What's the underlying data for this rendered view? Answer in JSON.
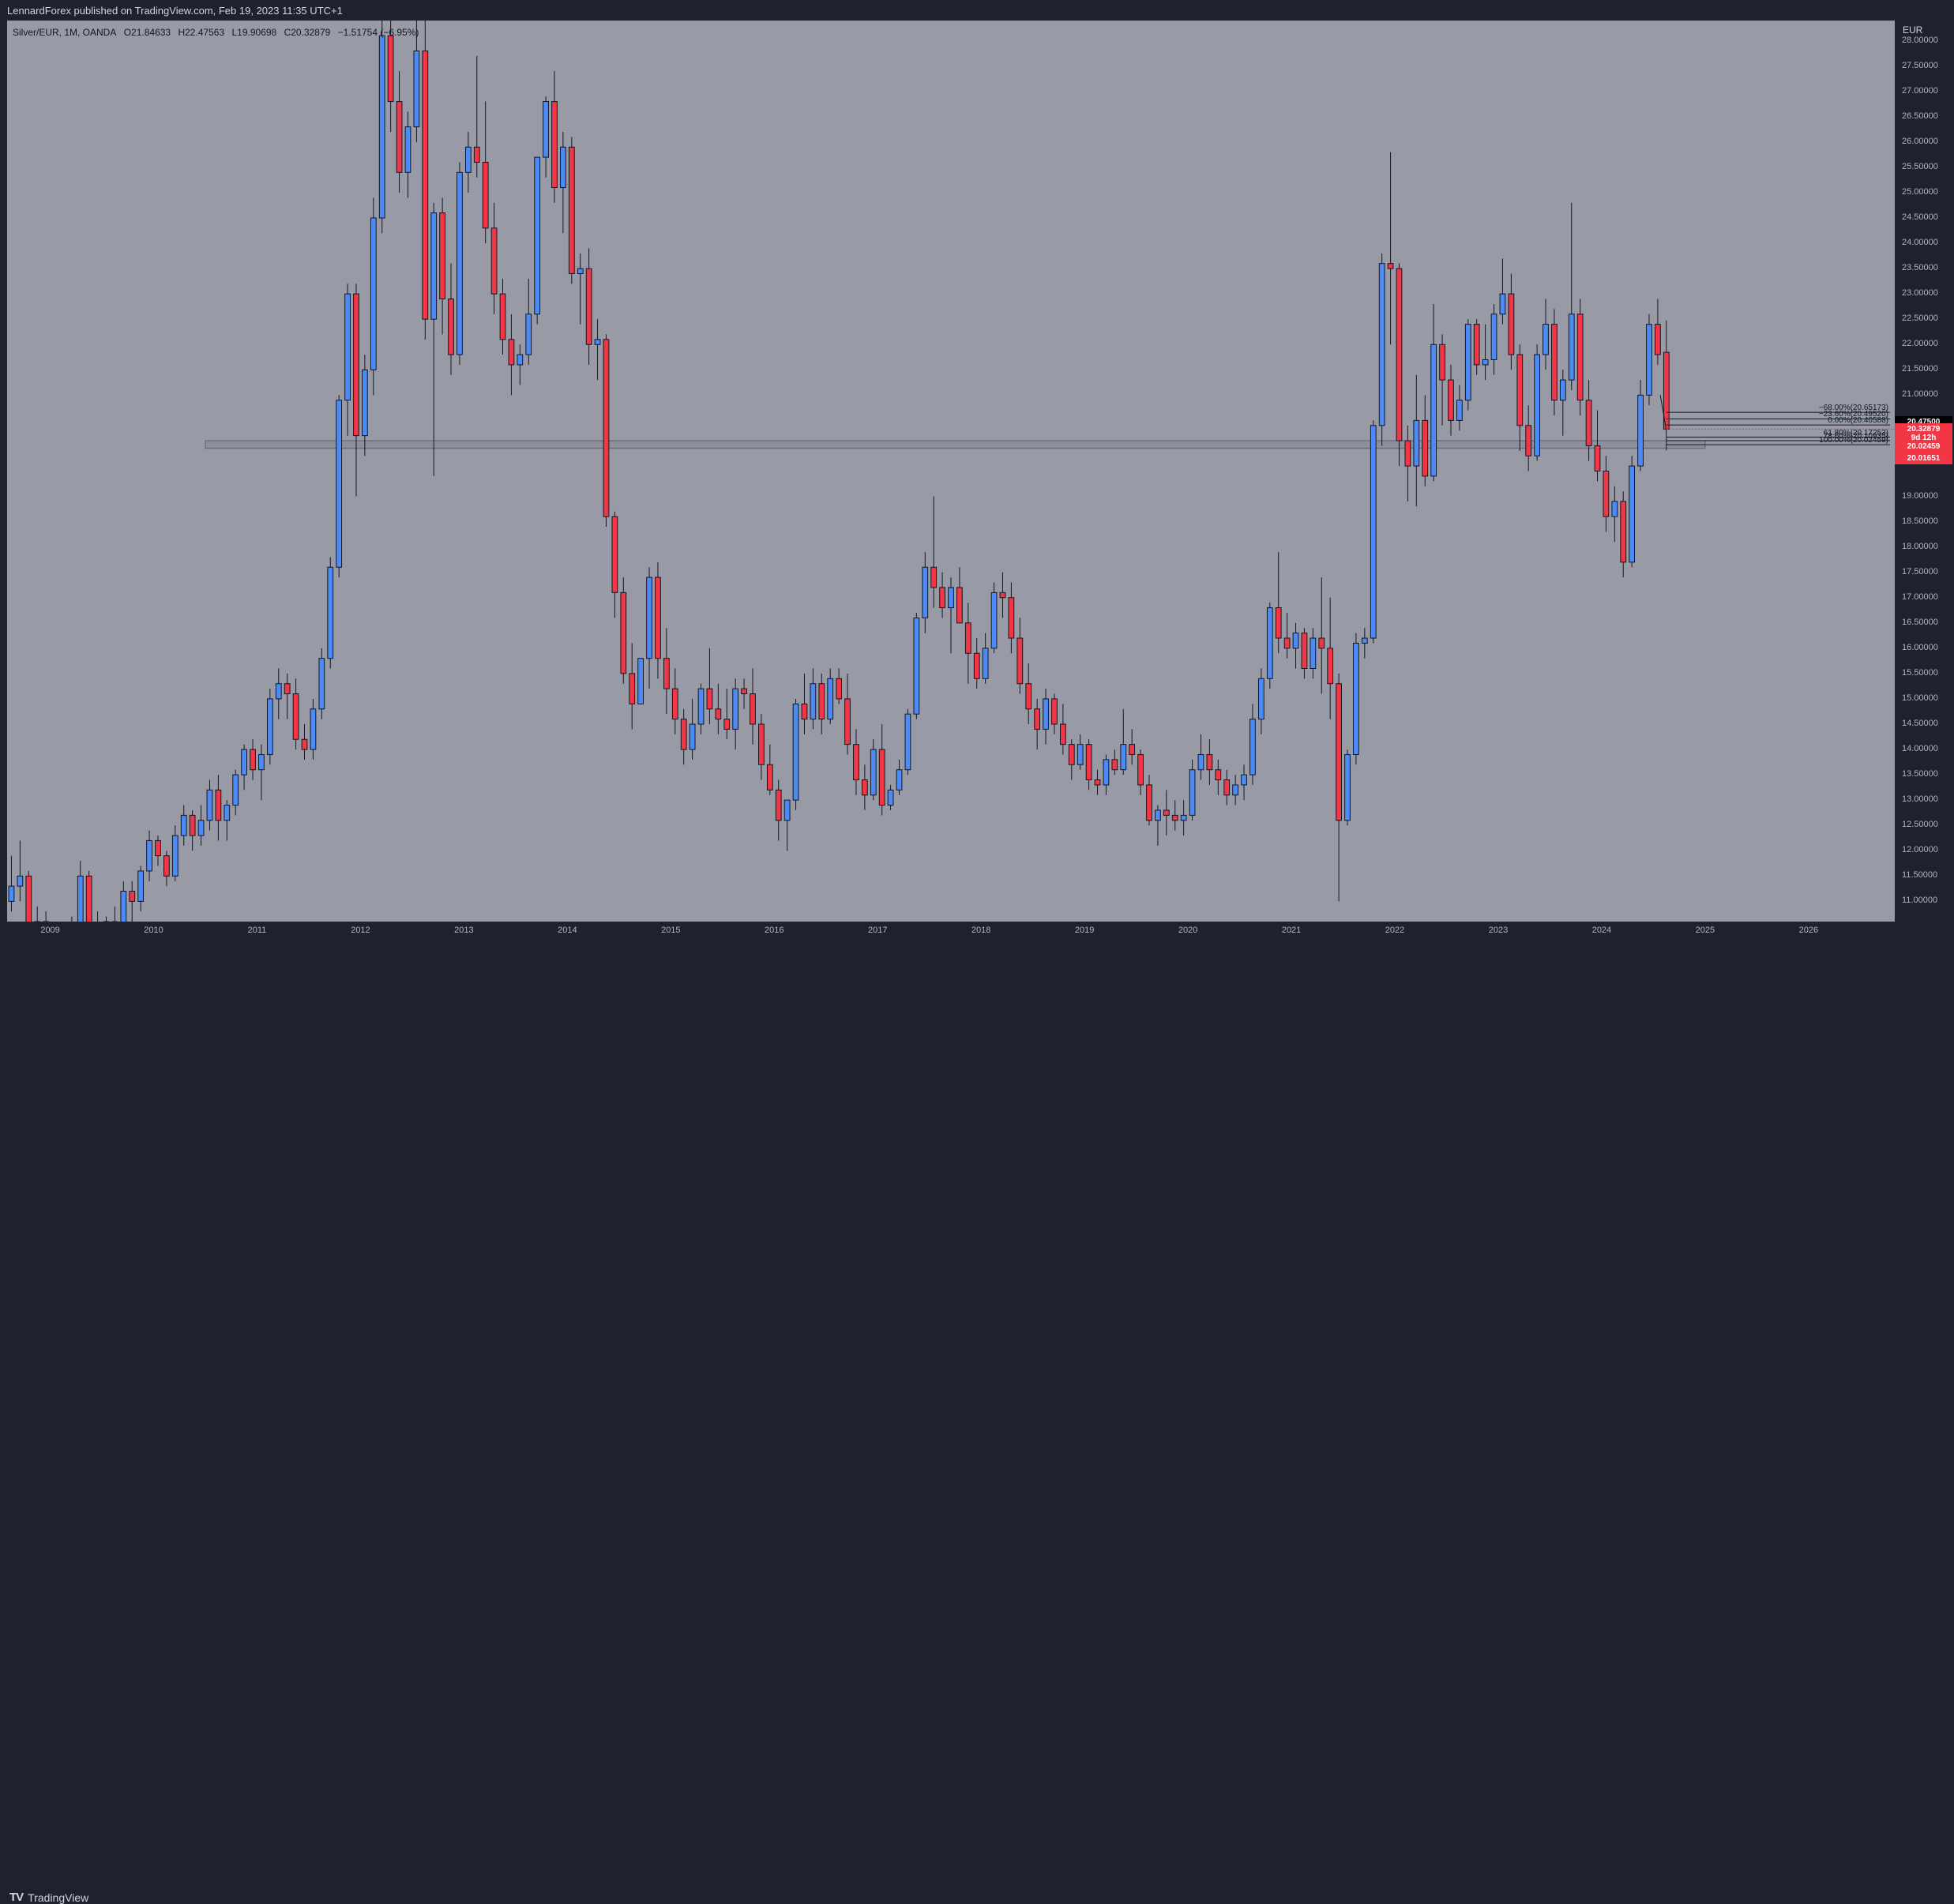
{
  "header": {
    "publisher_text": "LennardForex published on TradingView.com, Feb 19, 2023 11:35 UTC+1"
  },
  "legend": {
    "symbol": "Silver/EUR, 1M, OANDA",
    "open": "O21.84633",
    "high": "H22.47563",
    "low": "L19.90698",
    "close": "C20.32879",
    "change": "−1.51754 (−6.95%)"
  },
  "footer": {
    "brand": "TradingView",
    "logo_glyph": "TV"
  },
  "price_scale": {
    "currency": "EUR",
    "ticks": [
      "28.00000",
      "27.50000",
      "27.00000",
      "26.50000",
      "26.00000",
      "25.50000",
      "25.00000",
      "24.50000",
      "24.00000",
      "23.50000",
      "23.00000",
      "22.50000",
      "22.00000",
      "21.50000",
      "21.00000",
      "19.00000",
      "18.50000",
      "18.00000",
      "17.50000",
      "17.00000",
      "16.50000",
      "16.00000",
      "15.50000",
      "15.00000",
      "14.50000",
      "14.00000",
      "13.50000",
      "13.00000",
      "12.50000",
      "12.00000",
      "11.50000",
      "11.00000"
    ]
  },
  "price_tags": [
    {
      "text": "20.47500",
      "bg": "#000000",
      "price": 20.475
    },
    {
      "text": "20.32879",
      "bg": "#f23645",
      "price": 20.3288
    },
    {
      "text": "9d 12h",
      "bg": "#f23645",
      "price": 20.17
    },
    {
      "text": "20.02459",
      "bg": "#f23645",
      "price": 19.99
    },
    {
      "text": "20.01651",
      "bg": "#f23645",
      "price": 19.75
    }
  ],
  "fib_labels": [
    {
      "text": "−68.00%(20.65173)",
      "price": 20.66
    },
    {
      "text": "−23.60%(20.49520)",
      "price": 20.53
    },
    {
      "text": "0.00%(20.40588)",
      "price": 20.41
    },
    {
      "text": "61.80%(20.17253)",
      "price": 20.17
    },
    {
      "text": "78.60%(20.10935)",
      "price": 20.1
    },
    {
      "text": "100.00%(20.02459)",
      "price": 20.02
    }
  ],
  "time_scale": {
    "labels": [
      "2009",
      "2010",
      "2011",
      "2012",
      "2013",
      "2014",
      "2015",
      "2016",
      "2017",
      "2018",
      "2019",
      "2020",
      "2021",
      "2022",
      "2023",
      "2024",
      "2025",
      "2026"
    ]
  },
  "colors": {
    "up": "#4c8bf5",
    "down": "#f23645",
    "plot_bg": "#989aa5",
    "panel": "#1e222d",
    "wick": "#131722"
  },
  "chart_data": {
    "type": "candlestick",
    "title": "Silver/EUR, 1M, OANDA",
    "ylabel": "EUR",
    "ylim": [
      10.6,
      28.4
    ],
    "x_start": "2008-08",
    "x_end": "2026-11",
    "interval": "1M",
    "price_line": 20.32879,
    "zone": {
      "from": "2010-07",
      "to": "2025-01",
      "low": 19.95,
      "high": 20.1
    },
    "candles_ohlc": [
      [
        11.0,
        11.9,
        10.8,
        11.3
      ],
      [
        11.3,
        12.2,
        11.0,
        11.5
      ],
      [
        11.5,
        11.6,
        10.2,
        10.4
      ],
      [
        10.4,
        10.9,
        10.0,
        10.6
      ],
      [
        10.6,
        10.8,
        10.0,
        10.2
      ],
      [
        10.2,
        10.6,
        9.8,
        10.3
      ],
      [
        10.3,
        10.5,
        9.6,
        9.8
      ],
      [
        9.8,
        10.7,
        9.6,
        10.4
      ],
      [
        10.4,
        11.8,
        10.3,
        11.5
      ],
      [
        11.5,
        11.6,
        10.2,
        10.5
      ],
      [
        10.5,
        10.8,
        9.8,
        10.0
      ],
      [
        10.0,
        10.7,
        9.8,
        10.6
      ],
      [
        10.6,
        10.9,
        10.0,
        10.3
      ],
      [
        10.3,
        11.4,
        10.1,
        11.2
      ],
      [
        11.2,
        11.4,
        10.6,
        11.0
      ],
      [
        11.0,
        11.7,
        10.8,
        11.6
      ],
      [
        11.6,
        12.4,
        11.4,
        12.2
      ],
      [
        12.2,
        12.3,
        11.7,
        11.9
      ],
      [
        11.9,
        12.0,
        11.3,
        11.5
      ],
      [
        11.5,
        12.5,
        11.4,
        12.3
      ],
      [
        12.3,
        12.9,
        12.1,
        12.7
      ],
      [
        12.7,
        12.8,
        12.0,
        12.3
      ],
      [
        12.3,
        12.9,
        12.1,
        12.6
      ],
      [
        12.6,
        13.4,
        12.4,
        13.2
      ],
      [
        13.2,
        13.5,
        12.2,
        12.6
      ],
      [
        12.6,
        13.0,
        12.2,
        12.9
      ],
      [
        12.9,
        13.6,
        12.7,
        13.5
      ],
      [
        13.5,
        14.1,
        13.2,
        14.0
      ],
      [
        14.0,
        14.2,
        13.4,
        13.6
      ],
      [
        13.6,
        14.1,
        13.0,
        13.9
      ],
      [
        13.9,
        15.2,
        13.7,
        15.0
      ],
      [
        15.0,
        15.6,
        14.6,
        15.3
      ],
      [
        15.3,
        15.5,
        14.6,
        15.1
      ],
      [
        15.1,
        15.4,
        14.0,
        14.2
      ],
      [
        14.2,
        14.5,
        13.8,
        14.0
      ],
      [
        14.0,
        15.0,
        13.8,
        14.8
      ],
      [
        14.8,
        16.0,
        14.6,
        15.8
      ],
      [
        15.8,
        17.8,
        15.6,
        17.6
      ],
      [
        17.6,
        21.0,
        17.4,
        20.9
      ],
      [
        20.9,
        23.2,
        20.2,
        23.0
      ],
      [
        23.0,
        23.2,
        19.0,
        20.2
      ],
      [
        20.2,
        21.8,
        19.8,
        21.5
      ],
      [
        21.5,
        24.9,
        21.0,
        24.5
      ],
      [
        24.5,
        28.6,
        24.2,
        28.1
      ],
      [
        28.1,
        29.0,
        26.2,
        26.8
      ],
      [
        26.8,
        27.4,
        25.0,
        25.4
      ],
      [
        25.4,
        26.6,
        24.9,
        26.3
      ],
      [
        26.3,
        29.0,
        26.0,
        27.8
      ],
      [
        27.8,
        28.5,
        22.1,
        22.5
      ],
      [
        22.5,
        24.8,
        19.4,
        24.6
      ],
      [
        24.6,
        24.9,
        22.2,
        22.9
      ],
      [
        22.9,
        23.6,
        21.4,
        21.8
      ],
      [
        21.8,
        25.6,
        21.6,
        25.4
      ],
      [
        25.4,
        26.2,
        25.0,
        25.9
      ],
      [
        25.9,
        27.7,
        25.3,
        25.6
      ],
      [
        25.6,
        26.8,
        24.0,
        24.3
      ],
      [
        24.3,
        24.8,
        22.6,
        23.0
      ],
      [
        23.0,
        23.3,
        21.8,
        22.1
      ],
      [
        22.1,
        22.6,
        21.0,
        21.6
      ],
      [
        21.6,
        22.0,
        21.2,
        21.8
      ],
      [
        21.8,
        23.3,
        21.6,
        22.6
      ],
      [
        22.6,
        24.6,
        22.4,
        25.7
      ],
      [
        25.7,
        26.9,
        25.3,
        26.8
      ],
      [
        26.8,
        27.4,
        24.8,
        25.1
      ],
      [
        25.1,
        26.2,
        24.2,
        25.9
      ],
      [
        25.9,
        26.1,
        23.2,
        23.4
      ],
      [
        23.4,
        23.8,
        22.4,
        23.5
      ],
      [
        23.5,
        23.9,
        21.6,
        22.0
      ],
      [
        22.0,
        22.5,
        21.3,
        22.1
      ],
      [
        22.1,
        22.2,
        18.4,
        18.6
      ],
      [
        18.6,
        18.7,
        16.6,
        17.1
      ],
      [
        17.1,
        17.4,
        15.3,
        15.5
      ],
      [
        15.5,
        16.1,
        14.4,
        14.9
      ],
      [
        14.9,
        15.0,
        15.3,
        15.8
      ],
      [
        15.8,
        17.6,
        15.2,
        17.4
      ],
      [
        17.4,
        17.7,
        15.4,
        15.8
      ],
      [
        15.8,
        16.4,
        14.7,
        15.2
      ],
      [
        15.2,
        15.6,
        14.3,
        14.6
      ],
      [
        14.6,
        14.8,
        13.7,
        14.0
      ],
      [
        14.0,
        15.0,
        13.8,
        14.5
      ],
      [
        14.5,
        15.3,
        14.3,
        15.2
      ],
      [
        15.2,
        16.0,
        14.5,
        14.8
      ],
      [
        14.8,
        15.3,
        14.3,
        14.6
      ],
      [
        14.6,
        15.2,
        14.2,
        14.4
      ],
      [
        14.4,
        15.4,
        14.0,
        15.2
      ],
      [
        15.2,
        15.4,
        14.8,
        15.1
      ],
      [
        15.1,
        15.6,
        14.1,
        14.5
      ],
      [
        14.5,
        14.7,
        13.4,
        13.7
      ],
      [
        13.7,
        14.1,
        13.1,
        13.2
      ],
      [
        13.2,
        13.4,
        12.2,
        12.6
      ],
      [
        12.6,
        13.0,
        12.0,
        13.0
      ],
      [
        13.0,
        15.0,
        12.8,
        14.9
      ],
      [
        14.9,
        15.5,
        14.3,
        14.6
      ],
      [
        14.6,
        15.6,
        14.4,
        15.3
      ],
      [
        15.3,
        15.5,
        14.3,
        14.6
      ],
      [
        14.6,
        15.6,
        14.5,
        15.4
      ],
      [
        15.4,
        15.6,
        14.9,
        15.0
      ],
      [
        15.0,
        15.5,
        13.9,
        14.1
      ],
      [
        14.1,
        14.4,
        13.1,
        13.4
      ],
      [
        13.4,
        13.7,
        12.8,
        13.1
      ],
      [
        13.1,
        14.2,
        13.0,
        14.0
      ],
      [
        14.0,
        14.5,
        12.7,
        12.9
      ],
      [
        12.9,
        13.3,
        12.8,
        13.2
      ],
      [
        13.2,
        13.8,
        13.1,
        13.6
      ],
      [
        13.6,
        14.8,
        13.5,
        14.7
      ],
      [
        14.7,
        16.7,
        14.6,
        16.6
      ],
      [
        16.6,
        17.9,
        16.3,
        17.6
      ],
      [
        17.6,
        19.0,
        16.8,
        17.2
      ],
      [
        17.2,
        17.5,
        16.6,
        16.8
      ],
      [
        16.8,
        17.4,
        15.9,
        17.2
      ],
      [
        17.2,
        17.6,
        16.5,
        16.5
      ],
      [
        16.5,
        16.9,
        15.3,
        15.9
      ],
      [
        15.9,
        16.2,
        15.2,
        15.4
      ],
      [
        15.4,
        16.3,
        15.3,
        16.0
      ],
      [
        16.0,
        17.3,
        15.9,
        17.1
      ],
      [
        17.1,
        17.5,
        16.6,
        17.0
      ],
      [
        17.0,
        17.3,
        15.9,
        16.2
      ],
      [
        16.2,
        16.6,
        15.1,
        15.3
      ],
      [
        15.3,
        15.7,
        14.5,
        14.8
      ],
      [
        14.8,
        15.0,
        14.0,
        14.4
      ],
      [
        14.4,
        15.2,
        14.1,
        15.0
      ],
      [
        15.0,
        15.1,
        14.3,
        14.5
      ],
      [
        14.5,
        14.9,
        13.9,
        14.1
      ],
      [
        14.1,
        14.2,
        13.4,
        13.7
      ],
      [
        13.7,
        14.3,
        13.6,
        14.1
      ],
      [
        14.1,
        14.2,
        13.2,
        13.4
      ],
      [
        13.4,
        13.6,
        13.1,
        13.3
      ],
      [
        13.3,
        13.9,
        13.1,
        13.8
      ],
      [
        13.8,
        14.0,
        13.5,
        13.6
      ],
      [
        13.6,
        14.8,
        13.5,
        14.1
      ],
      [
        14.1,
        14.4,
        13.7,
        13.9
      ],
      [
        13.9,
        14.0,
        13.1,
        13.3
      ],
      [
        13.3,
        13.5,
        12.5,
        12.6
      ],
      [
        12.6,
        12.9,
        12.1,
        12.8
      ],
      [
        12.8,
        13.2,
        12.3,
        12.7
      ],
      [
        12.7,
        13.0,
        12.4,
        12.6
      ],
      [
        12.6,
        13.0,
        12.3,
        12.7
      ],
      [
        12.7,
        13.8,
        12.6,
        13.6
      ],
      [
        13.6,
        14.3,
        13.4,
        13.9
      ],
      [
        13.9,
        14.2,
        13.3,
        13.6
      ],
      [
        13.6,
        13.8,
        13.1,
        13.4
      ],
      [
        13.4,
        13.6,
        12.9,
        13.1
      ],
      [
        13.1,
        13.5,
        12.9,
        13.3
      ],
      [
        13.3,
        13.7,
        13.0,
        13.5
      ],
      [
        13.5,
        14.9,
        13.3,
        14.6
      ],
      [
        14.6,
        15.6,
        14.3,
        15.4
      ],
      [
        15.4,
        16.9,
        15.2,
        16.8
      ],
      [
        16.8,
        17.9,
        15.9,
        16.2
      ],
      [
        16.2,
        16.7,
        15.8,
        16.0
      ],
      [
        16.0,
        16.5,
        15.6,
        16.3
      ],
      [
        16.3,
        16.4,
        15.4,
        15.6
      ],
      [
        15.6,
        16.4,
        15.4,
        16.2
      ],
      [
        16.2,
        17.4,
        15.1,
        16.0
      ],
      [
        16.0,
        17.0,
        14.6,
        15.3
      ],
      [
        15.3,
        15.5,
        11.0,
        12.6
      ],
      [
        12.6,
        14.0,
        12.5,
        13.9
      ],
      [
        13.9,
        16.3,
        13.7,
        16.1
      ],
      [
        16.1,
        16.4,
        15.8,
        16.2
      ],
      [
        16.2,
        20.5,
        16.1,
        20.4
      ],
      [
        20.4,
        23.8,
        20.0,
        23.6
      ],
      [
        23.6,
        25.8,
        22.0,
        23.5
      ],
      [
        23.5,
        23.6,
        19.6,
        20.1
      ],
      [
        20.1,
        20.4,
        18.9,
        19.6
      ],
      [
        19.6,
        21.4,
        18.8,
        20.5
      ],
      [
        20.5,
        21.0,
        19.2,
        19.4
      ],
      [
        19.4,
        22.8,
        19.3,
        22.0
      ],
      [
        22.0,
        22.2,
        20.4,
        21.3
      ],
      [
        21.3,
        21.6,
        20.2,
        20.5
      ],
      [
        20.5,
        21.2,
        20.3,
        20.9
      ],
      [
        20.9,
        22.5,
        20.7,
        22.4
      ],
      [
        22.4,
        22.5,
        21.4,
        21.6
      ],
      [
        21.6,
        22.4,
        21.3,
        21.7
      ],
      [
        21.7,
        22.8,
        21.4,
        22.6
      ],
      [
        22.6,
        23.7,
        22.4,
        23.0
      ],
      [
        23.0,
        23.4,
        21.5,
        21.8
      ],
      [
        21.8,
        22.0,
        19.9,
        20.4
      ],
      [
        20.4,
        20.8,
        19.5,
        19.8
      ],
      [
        19.8,
        22.0,
        19.7,
        21.8
      ],
      [
        21.8,
        22.9,
        21.5,
        22.4
      ],
      [
        22.4,
        22.7,
        20.6,
        20.9
      ],
      [
        20.9,
        21.5,
        20.2,
        21.3
      ],
      [
        21.3,
        24.8,
        21.1,
        22.6
      ],
      [
        22.6,
        22.9,
        20.6,
        20.9
      ],
      [
        20.9,
        21.3,
        19.7,
        20.0
      ],
      [
        20.0,
        20.7,
        19.3,
        19.5
      ],
      [
        19.5,
        19.8,
        18.3,
        18.6
      ],
      [
        18.6,
        19.2,
        18.1,
        18.9
      ],
      [
        18.9,
        19.1,
        17.4,
        17.7
      ],
      [
        17.7,
        19.8,
        17.6,
        19.6
      ],
      [
        19.6,
        21.3,
        19.5,
        21.0
      ],
      [
        21.0,
        22.6,
        20.8,
        22.4
      ],
      [
        22.4,
        22.9,
        21.6,
        21.8
      ],
      [
        21.84633,
        22.47563,
        19.90698,
        20.32879
      ]
    ]
  }
}
